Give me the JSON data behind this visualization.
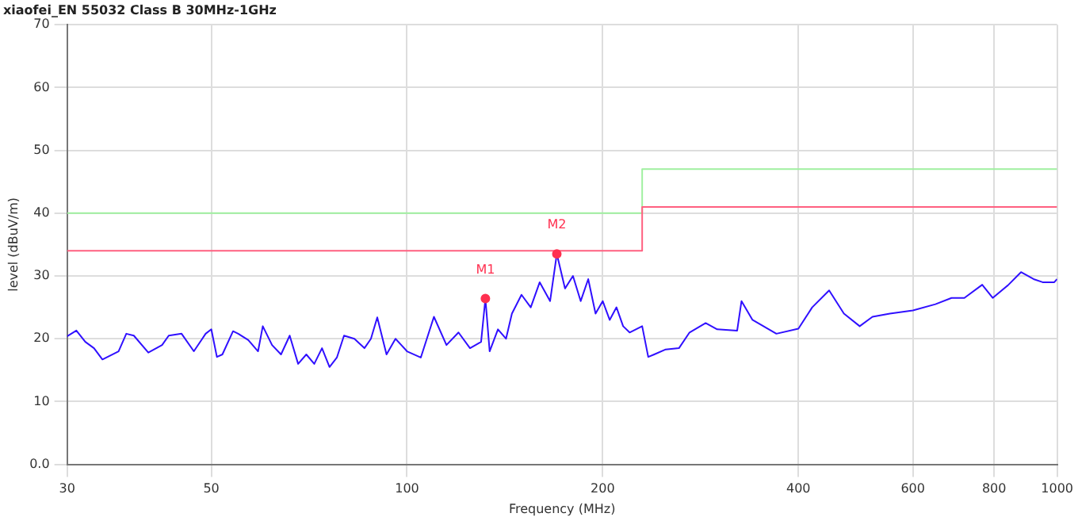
{
  "chart_data": {
    "type": "line",
    "title": "xiaofei_EN 55032 Class B 30MHz-1GHz",
    "xlabel": "Frequency (MHz)",
    "ylabel": "level (dBuV/m)",
    "log": "x",
    "xlim": [
      30,
      1000
    ],
    "xticks": [
      30,
      50,
      100,
      200,
      400,
      600,
      800,
      1000
    ],
    "ylim": [
      0,
      70
    ],
    "yticks": [
      {
        "value": 0,
        "label": "0.0"
      },
      10,
      20,
      30,
      40,
      50,
      60,
      70
    ],
    "grid": true,
    "legend": false,
    "marker": "none",
    "series": [
      {
        "color": "#3010ff",
        "x": [
          30,
          31,
          32,
          33,
          34,
          36,
          37,
          38,
          40,
          42,
          43,
          45,
          47,
          49,
          50,
          51,
          52,
          54,
          55,
          57,
          59,
          60,
          62,
          64,
          66,
          68,
          70,
          72,
          74,
          76,
          78,
          80,
          83,
          86,
          88,
          90,
          93,
          96,
          98,
          100,
          105,
          110,
          115,
          120,
          125,
          130,
          132,
          134,
          138,
          142,
          145,
          150,
          155,
          160,
          166,
          170,
          175,
          180,
          185,
          190,
          195,
          200,
          205,
          210,
          215,
          220,
          230,
          235,
          240,
          250,
          262,
          272,
          288,
          300,
          322,
          327,
          340,
          370,
          400,
          420,
          446,
          470,
          497,
          520,
          553,
          600,
          650,
          688,
          720,
          767,
          796,
          840,
          880,
          920,
          950,
          990,
          1000
        ],
        "values": [
          20.4,
          21.3,
          19.5,
          18.5,
          16.7,
          18,
          20.8,
          20.5,
          17.8,
          19,
          20.5,
          20.8,
          18,
          20.8,
          21.5,
          17.1,
          17.5,
          21.2,
          20.8,
          19.8,
          18,
          22,
          19,
          17.5,
          20.5,
          16,
          17.5,
          16,
          18.5,
          15.5,
          17,
          20.5,
          20,
          18.5,
          20,
          23.4,
          17.5,
          20,
          19,
          18,
          17,
          23.5,
          19,
          21,
          18.5,
          19.5,
          26.4,
          18,
          21.5,
          20,
          24,
          27,
          25,
          29,
          26,
          33.5,
          28,
          30,
          26,
          29.5,
          24,
          26,
          23,
          25,
          22,
          21,
          22,
          17.1,
          17.5,
          18.3,
          18.5,
          21,
          22.5,
          21.5,
          21.3,
          26,
          23,
          20.8,
          21.6,
          25,
          27.7,
          24,
          22,
          23.5,
          24,
          24.5,
          25.5,
          26.5,
          26.5,
          28.6,
          26.5,
          28.5,
          30.6,
          29.5,
          29,
          29,
          29.5
        ]
      },
      {
        "color": "#ff6080",
        "x": [
          30,
          230,
          230,
          1000
        ],
        "values": [
          34,
          34,
          41,
          41
        ]
      },
      {
        "color": "#a0f0a0",
        "x": [
          30,
          230,
          230,
          1000
        ],
        "values": [
          40,
          40,
          47,
          47
        ]
      },
      {
        "type": "scatter",
        "marker": "circle",
        "color": "#ff3050",
        "x": [
          132,
          170
        ],
        "values": [
          26.4,
          33.5
        ]
      }
    ],
    "annotations": [
      {
        "text": "M1",
        "x": 132,
        "y": 26.4
      },
      {
        "text": "M2",
        "x": 170,
        "y": 33.5
      }
    ]
  }
}
